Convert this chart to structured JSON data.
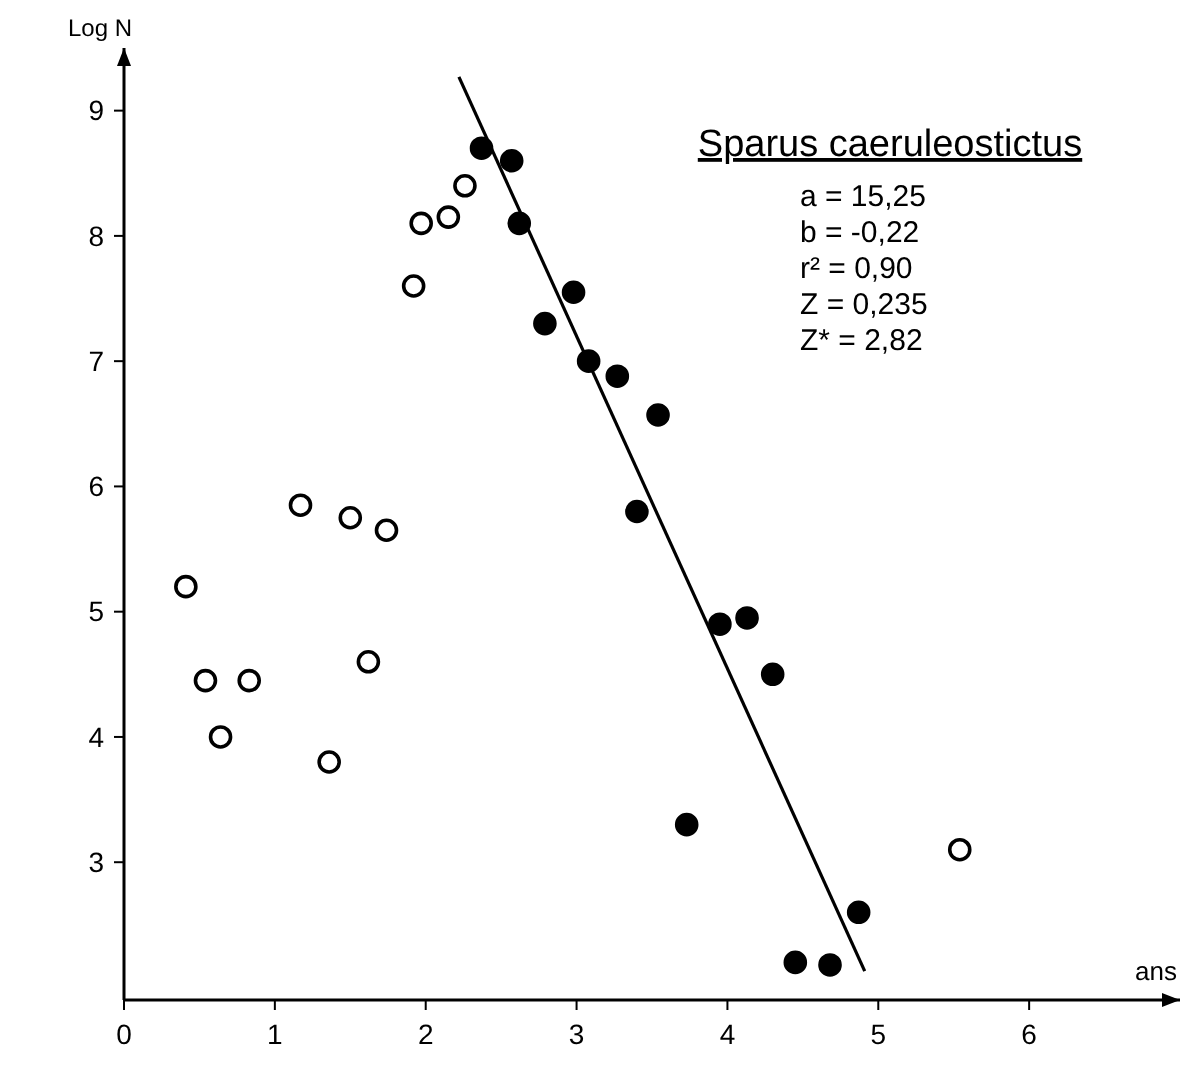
{
  "chart_data": {
    "type": "scatter",
    "title": "Sparus caeruleostictus",
    "xlabel": "ans",
    "ylabel": "Log N",
    "xlim": [
      0,
      7
    ],
    "ylim": [
      1.9,
      9.5
    ],
    "xticks": [
      0,
      1,
      2,
      3,
      4,
      5,
      6
    ],
    "yticks": [
      3,
      4,
      5,
      6,
      7,
      8,
      9
    ],
    "grid": false,
    "annotations": [
      "a = 15,25",
      "b = -0,22",
      "r² = 0,90",
      "Z = 0,235",
      "Z* = 2,82"
    ],
    "series": [
      {
        "marker": "circle",
        "color": "#ffffff",
        "x": [
          0.41,
          0.54,
          0.64,
          0.83,
          1.17,
          1.36,
          1.5,
          1.62,
          1.74,
          1.92,
          1.97,
          2.15,
          2.26,
          5.54
        ],
        "values": [
          5.2,
          4.45,
          4.0,
          4.45,
          5.85,
          3.8,
          5.75,
          4.6,
          5.65,
          7.6,
          8.1,
          8.15,
          8.4,
          3.1
        ]
      },
      {
        "marker": "circle",
        "color": "#000000",
        "x": [
          2.37,
          2.57,
          2.62,
          2.79,
          2.98,
          3.08,
          3.27,
          3.4,
          3.54,
          3.73,
          3.95,
          4.13,
          4.3,
          4.45,
          4.68,
          4.87
        ],
        "values": [
          8.7,
          8.6,
          8.1,
          7.3,
          7.55,
          7.0,
          6.88,
          5.8,
          6.57,
          3.3,
          4.9,
          4.95,
          4.5,
          2.2,
          2.18,
          2.6
        ]
      },
      {
        "type": "line",
        "color": "#000000",
        "x": [
          2.22,
          4.91
        ],
        "values": [
          9.27,
          2.13
        ]
      }
    ]
  }
}
